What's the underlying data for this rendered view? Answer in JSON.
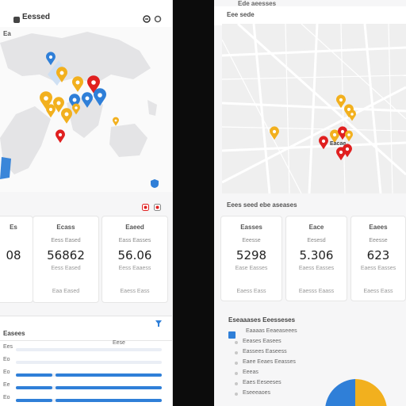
{
  "left": {
    "title": "Eessed",
    "map_label": "Ea",
    "stats": [
      {
        "label": "Es",
        "sub": "",
        "value": "08",
        "foot": "",
        "foot2": ""
      },
      {
        "label": "Ecass",
        "sub": "Eess Eased",
        "value": "56862",
        "foot": "Eess Eased",
        "foot2": "Eaa Eased"
      },
      {
        "label": "Eaeed",
        "sub": "Eass Easses",
        "value": "56.06",
        "foot": "Eess Eaaess",
        "foot2": "Eaess Eass"
      }
    ],
    "section_title": "Easees",
    "bars": [
      {
        "label": "Ees",
        "track_label": "Eese",
        "fill": 0.0
      },
      {
        "label": "Eo",
        "track_label": "",
        "fill": 0.0
      },
      {
        "label": "Eo",
        "track_label": "",
        "fill": 1.0
      },
      {
        "label": "Ee",
        "track_label": "",
        "fill": 1.0
      },
      {
        "label": "Eo",
        "track_label": "",
        "fill": 1.0
      }
    ],
    "colors": {
      "accent": "#2f7fd8",
      "red": "#e02020",
      "yellow": "#f2b01e"
    }
  },
  "right": {
    "top_label": "Ede aeesses",
    "map_title": "Eee sede",
    "map_section": "Eees seed ebe aseases",
    "stats": [
      {
        "label": "Easses",
        "sub": "Eeesse",
        "value": "5298",
        "foot": "Ease Easses",
        "foot2": "Eaess Eass"
      },
      {
        "label": "Eace",
        "sub": "Eesesd",
        "value": "5.306",
        "foot": "Eaess Easses",
        "foot2": "Eaesss Eaass"
      },
      {
        "label": "Eaees",
        "sub": "Eeesse",
        "value": "623",
        "foot": "Eaess Easses",
        "foot2": "Eaess Eass"
      }
    ],
    "section_title": "Eseaaases Eeesseses",
    "list": [
      "Eaaaas Eeaeaseees",
      "Eeases Easees",
      "Eassees Easeess",
      "Eaee Eeaes Eeasses",
      "Eeeas",
      "Eaes Eeseeses",
      "Eseeeaoes"
    ],
    "pin_label": "Eacae",
    "colors": {
      "accent": "#2f7fd8",
      "red": "#e02020",
      "yellow": "#f2b01e",
      "pie_blue": "#2f7fd8",
      "pie_yellow": "#f2b01e"
    }
  }
}
